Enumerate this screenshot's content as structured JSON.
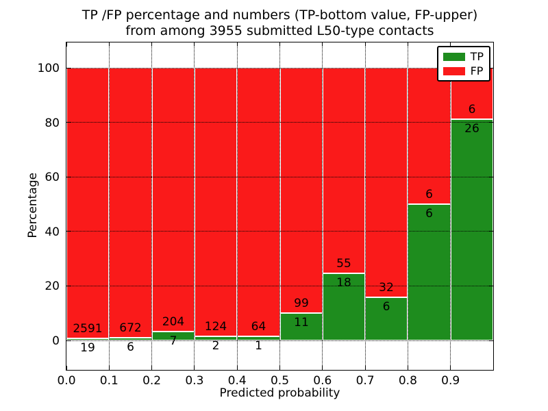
{
  "title": {
    "line1": "TP /FP percentage and numbers (TP-bottom value, FP-upper)",
    "line2": "from among 3955 submitted L50-type contacts"
  },
  "chart_data": {
    "type": "bar",
    "stacked": true,
    "normalized_to_percent": true,
    "title": "TP /FP percentage and numbers (TP-bottom value, FP-upper) from among 3955 submitted L50-type contacts",
    "xlabel": "Predicted probability",
    "ylabel": "Percentage",
    "xlim": [
      0.0,
      1.0
    ],
    "ylim": [
      -11,
      110
    ],
    "x_tick_labels": [
      "0.0",
      "0.1",
      "0.2",
      "0.3",
      "0.4",
      "0.5",
      "0.6",
      "0.7",
      "0.8",
      "0.9"
    ],
    "y_tick_values": [
      0,
      20,
      40,
      60,
      80,
      100
    ],
    "grid": "dotted black horizontal at y ticks, vertical at x ticks",
    "legend_position": "upper right",
    "series": [
      {
        "name": "TP",
        "color": "#1e8c1e"
      },
      {
        "name": "FP",
        "color": "#fa1a1a"
      }
    ],
    "bins": [
      {
        "x0": 0.0,
        "x1": 0.1,
        "tp": 19,
        "fp": 2591
      },
      {
        "x0": 0.1,
        "x1": 0.2,
        "tp": 6,
        "fp": 672
      },
      {
        "x0": 0.2,
        "x1": 0.3,
        "tp": 7,
        "fp": 204
      },
      {
        "x0": 0.3,
        "x1": 0.4,
        "tp": 2,
        "fp": 124
      },
      {
        "x0": 0.4,
        "x1": 0.5,
        "tp": 1,
        "fp": 64
      },
      {
        "x0": 0.5,
        "x1": 0.6,
        "tp": 11,
        "fp": 99
      },
      {
        "x0": 0.6,
        "x1": 0.7,
        "tp": 18,
        "fp": 55
      },
      {
        "x0": 0.7,
        "x1": 0.8,
        "tp": 6,
        "fp": 32
      },
      {
        "x0": 0.8,
        "x1": 0.9,
        "tp": 6,
        "fp": 6
      },
      {
        "x0": 0.9,
        "x1": 1.0,
        "tp": 26,
        "fp": 6
      }
    ],
    "colors": {
      "tp": "#1e8c1e",
      "fp": "#fa1a1a",
      "bar_edge": "#ffffff",
      "grid": "#000000",
      "background": "#ffffff"
    }
  }
}
